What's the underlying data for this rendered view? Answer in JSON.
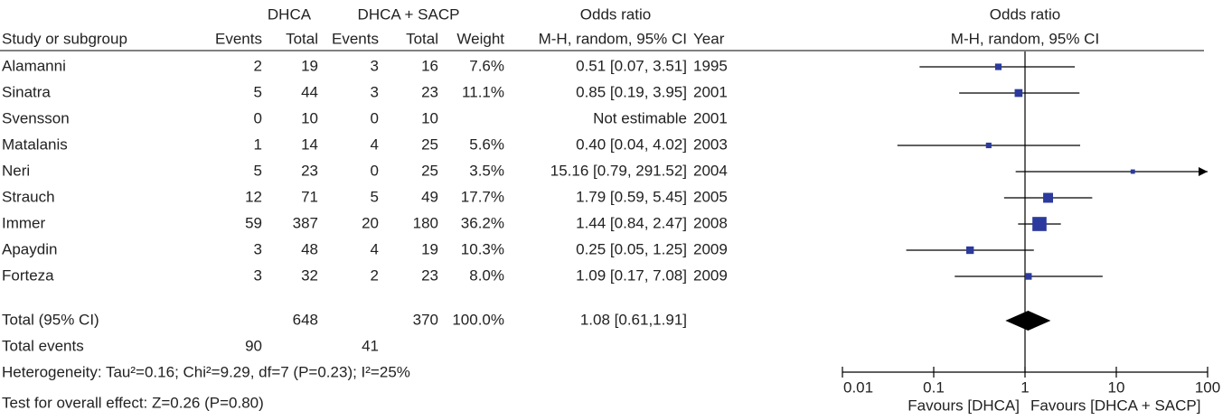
{
  "table": {
    "group_headers": [
      "DHCA",
      "DHCA + SACP",
      "Odds ratio"
    ],
    "columns": [
      "Study or subgroup",
      "Events",
      "Total",
      "Events",
      "Total",
      "Weight",
      "M-H, random, 95% CI",
      "Year"
    ],
    "rows": [
      [
        "Alamanni",
        "2",
        "19",
        "3",
        "16",
        "7.6%",
        "0.51 [0.07, 3.51]",
        "1995"
      ],
      [
        "Sinatra",
        "5",
        "44",
        "3",
        "23",
        "11.1%",
        "0.85 [0.19, 3.95]",
        "2001"
      ],
      [
        "Svensson",
        "0",
        "10",
        "0",
        "10",
        null,
        "Not estimable",
        "2001"
      ],
      [
        "Matalanis",
        "1",
        "14",
        "4",
        "25",
        "5.6%",
        "0.40 [0.04, 4.02]",
        "2003"
      ],
      [
        "Neri",
        "5",
        "23",
        "0",
        "25",
        "3.5%",
        "15.16 [0.79, 291.52]",
        "2004"
      ],
      [
        "Strauch",
        "12",
        "71",
        "5",
        "49",
        "17.7%",
        "1.79 [0.59, 5.45]",
        "2005"
      ],
      [
        "Immer",
        "59",
        "387",
        "20",
        "180",
        "36.2%",
        "1.44 [0.84, 2.47]",
        "2008"
      ],
      [
        "Apaydin",
        "3",
        "48",
        "4",
        "19",
        "10.3%",
        "0.25 [0.05, 1.25]",
        "2009"
      ],
      [
        "Forteza",
        "3",
        "32",
        "2",
        "23",
        "8.0%",
        "1.09 [0.17, 7.08]",
        "2009"
      ]
    ],
    "total_row": [
      "Total (95% CI)",
      null,
      "648",
      null,
      "370",
      "100.0%",
      "1.08 [0.61,1.91]",
      null
    ],
    "events_row": [
      "Total events",
      "90",
      null,
      "41",
      null,
      null,
      null,
      null
    ],
    "heterogeneity": "Heterogeneity: Tau²=0.16; Chi²=9.29, df=7 (P=0.23); I²=25%",
    "overall_effect": "Test for overall effect: Z=0.26 (P=0.80)"
  },
  "chart_data": {
    "type": "forest",
    "title": "Odds ratio",
    "subtitle": "M-H, random, 95% CI",
    "estimates": [
      0.51,
      0.85,
      null,
      0.4,
      15.16,
      1.79,
      1.44,
      0.25,
      1.09
    ],
    "lower": [
      0.07,
      0.19,
      null,
      0.04,
      0.79,
      0.59,
      0.84,
      0.05,
      0.17
    ],
    "upper": [
      3.51,
      3.95,
      null,
      4.02,
      291.52,
      5.45,
      2.47,
      1.25,
      7.08
    ],
    "weights": [
      7.6,
      11.1,
      null,
      5.6,
      3.5,
      17.7,
      36.2,
      10.3,
      8.0
    ],
    "pooled": {
      "estimate": 1.08,
      "lower": 0.61,
      "upper": 1.91
    },
    "xlim": [
      0.01,
      100
    ],
    "xticks": [
      0.01,
      0.1,
      1,
      10,
      100
    ],
    "log_scale": true,
    "color": "#2b3a9c",
    "favours_left": "Favours [DHCA]",
    "favours_right": "Favours [DHCA + SACP]"
  }
}
